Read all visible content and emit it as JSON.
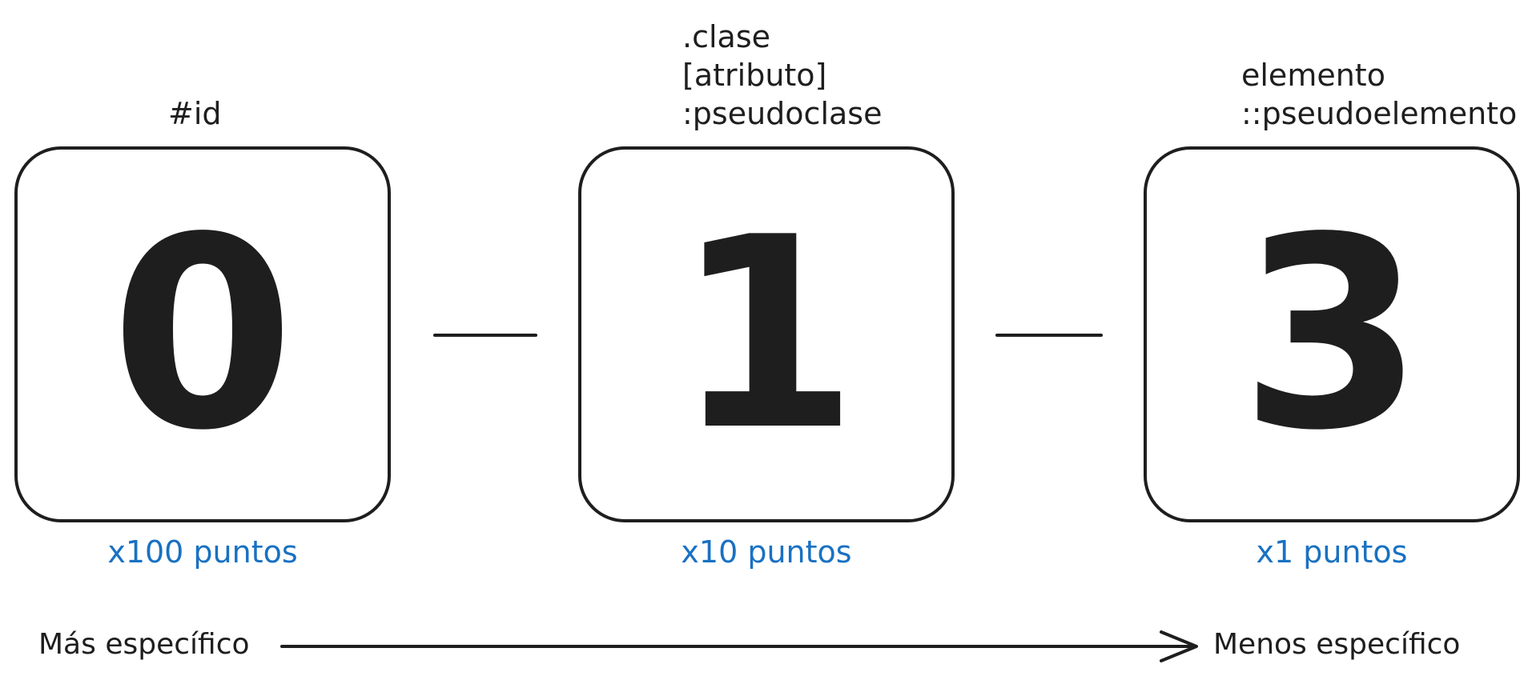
{
  "columns": [
    {
      "selectors": [
        "#id"
      ],
      "digit": "0",
      "points": "x100 puntos"
    },
    {
      "selectors": [
        ".clase",
        "[atributo]",
        ":pseudoclase"
      ],
      "digit": "1",
      "points": "x10 puntos"
    },
    {
      "selectors": [
        "elemento",
        "::pseudoelemento"
      ],
      "digit": "3",
      "points": "x1 puntos"
    }
  ],
  "axis": {
    "left_label": "Más específico",
    "right_label": "Menos específico"
  },
  "colors": {
    "ink": "#1e1e1e",
    "points": "#1971c2",
    "background": "#ffffff"
  }
}
